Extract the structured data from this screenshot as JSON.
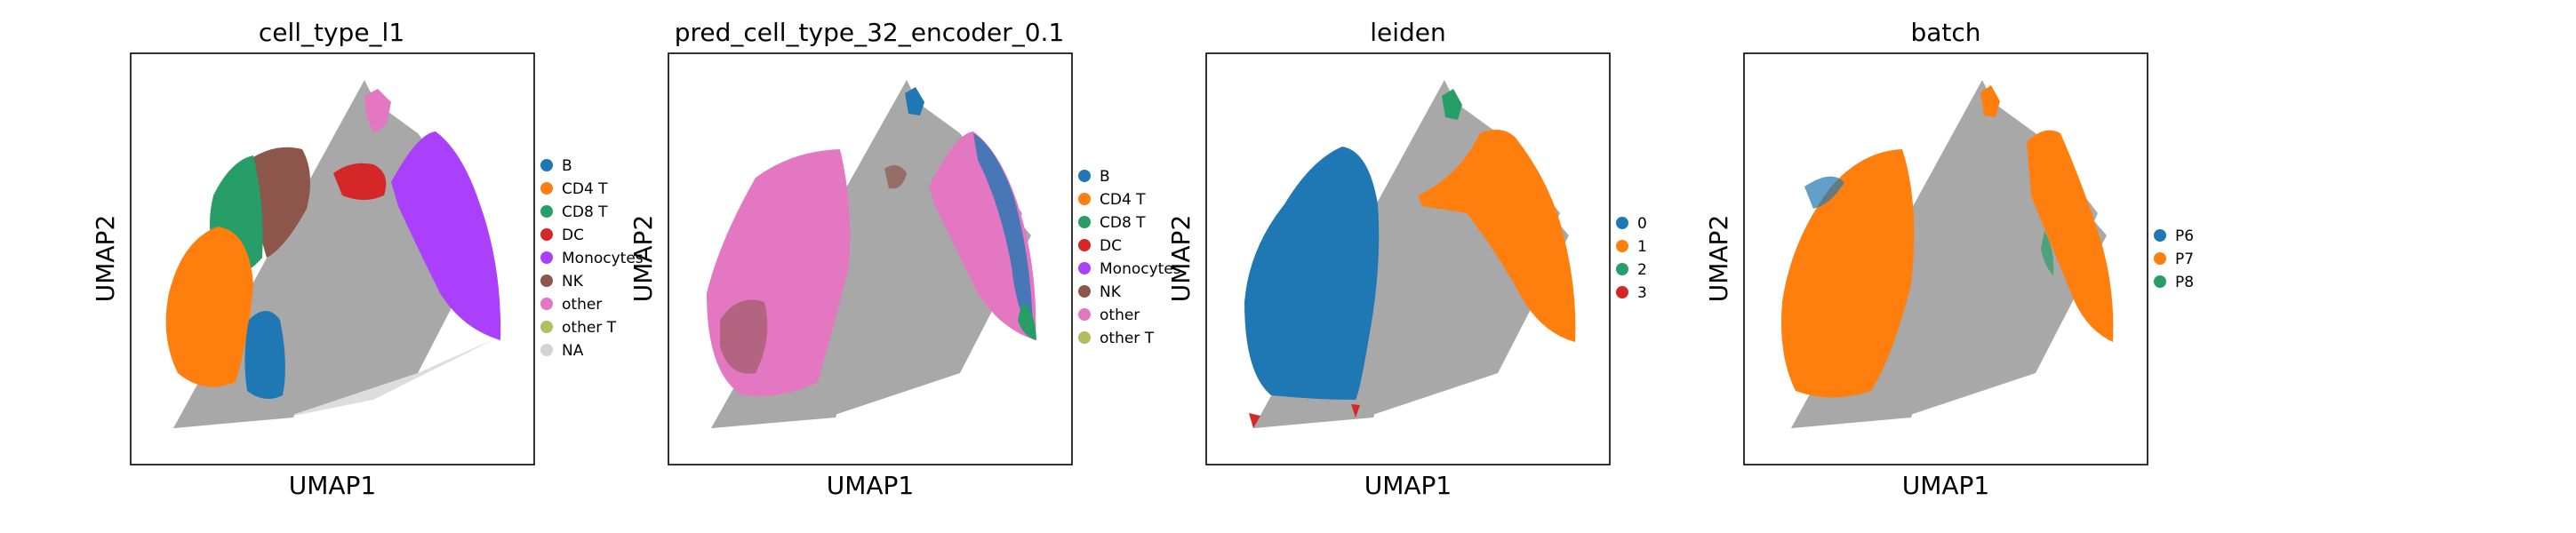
{
  "chart_data": [
    {
      "type": "scatter",
      "title": "cell_type_l1",
      "xlabel": "UMAP1",
      "ylabel": "UMAP2",
      "legend_placement": "right",
      "grid": false,
      "ticks": false,
      "series": [
        {
          "name": "B",
          "color": "#1f77b4"
        },
        {
          "name": "CD4 T",
          "color": "#ff7f0e"
        },
        {
          "name": "CD8 T",
          "color": "#279e68"
        },
        {
          "name": "DC",
          "color": "#d62728"
        },
        {
          "name": "Monocytes",
          "color": "#aa40fc"
        },
        {
          "name": "NK",
          "color": "#8c564b"
        },
        {
          "name": "other",
          "color": "#e377c2"
        },
        {
          "name": "other T",
          "color": "#b5bd61"
        },
        {
          "name": "NA",
          "color": "#d3d3d3"
        }
      ]
    },
    {
      "type": "scatter",
      "title": "pred_cell_type_32_encoder_0.1",
      "xlabel": "UMAP1",
      "ylabel": "UMAP2",
      "legend_placement": "right",
      "grid": false,
      "ticks": false,
      "series": [
        {
          "name": "B",
          "color": "#1f77b4"
        },
        {
          "name": "CD4 T",
          "color": "#ff7f0e"
        },
        {
          "name": "CD8 T",
          "color": "#279e68"
        },
        {
          "name": "DC",
          "color": "#d62728"
        },
        {
          "name": "Monocytes",
          "color": "#aa40fc"
        },
        {
          "name": "NK",
          "color": "#8c564b"
        },
        {
          "name": "other",
          "color": "#e377c2"
        },
        {
          "name": "other T",
          "color": "#b5bd61"
        }
      ]
    },
    {
      "type": "scatter",
      "title": "leiden",
      "xlabel": "UMAP1",
      "ylabel": "UMAP2",
      "legend_placement": "right",
      "grid": false,
      "ticks": false,
      "series": [
        {
          "name": "0",
          "color": "#1f77b4"
        },
        {
          "name": "1",
          "color": "#ff7f0e"
        },
        {
          "name": "2",
          "color": "#279e68"
        },
        {
          "name": "3",
          "color": "#d62728"
        }
      ]
    },
    {
      "type": "scatter",
      "title": "batch",
      "xlabel": "UMAP1",
      "ylabel": "UMAP2",
      "legend_placement": "right",
      "grid": false,
      "ticks": false,
      "series": [
        {
          "name": "P6",
          "color": "#1f77b4"
        },
        {
          "name": "P7",
          "color": "#ff7f0e"
        },
        {
          "name": "P8",
          "color": "#279e68"
        }
      ]
    }
  ]
}
